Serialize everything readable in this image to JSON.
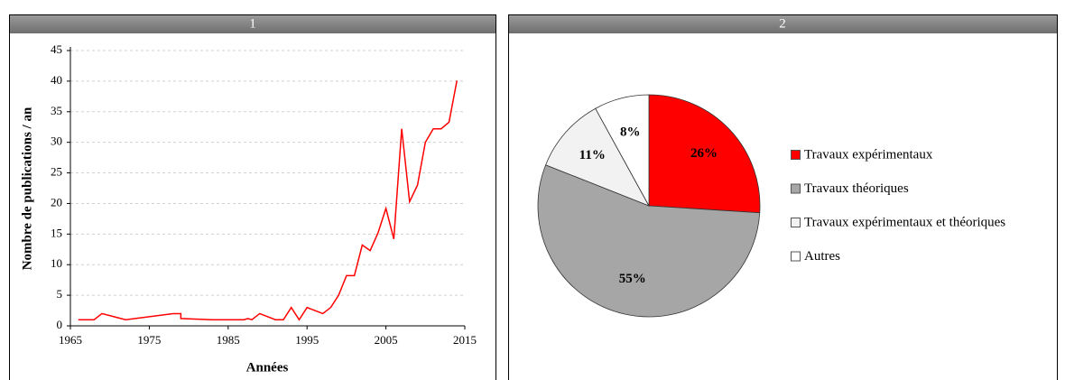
{
  "chart_data": [
    {
      "type": "line",
      "label": "1",
      "x_label": "Années",
      "y_label": "Nombre de publications / an",
      "x": [
        1966,
        1968,
        1969,
        1972,
        1978,
        1979,
        1979,
        1983,
        1987,
        1987.5,
        1988,
        1989,
        1991,
        1992,
        1993,
        1994,
        1995,
        1997,
        1998,
        1999,
        2000,
        2001,
        2002,
        2003,
        2004,
        2005,
        2006,
        2007,
        2008,
        2009,
        2010,
        2011,
        2012,
        2013,
        2014
      ],
      "series": [
        {
          "name": "Publications",
          "color": "#ff0000",
          "values": [
            1,
            1,
            2,
            1,
            2,
            2,
            1.2,
            1,
            1,
            1.2,
            1,
            2,
            1,
            1,
            3,
            1,
            3,
            2,
            3,
            5,
            8.2,
            8.2,
            13.2,
            12.3,
            15.2,
            19.2,
            14.2,
            32.2,
            20.3,
            23,
            30,
            32.2,
            32.2,
            33.3,
            40.1
          ]
        }
      ],
      "xlim": [
        1965,
        2015
      ],
      "xticks": [
        1965,
        1975,
        1985,
        1995,
        2005,
        2015
      ],
      "ylim": [
        0,
        45
      ],
      "yticks": [
        0,
        5,
        10,
        15,
        20,
        25,
        30,
        35,
        40,
        45
      ],
      "grid": true
    },
    {
      "type": "pie",
      "label": "2",
      "categories": [
        "Travaux expérimentaux",
        "Travaux théoriques",
        "Travaux expérimentaux et théoriques",
        "Autres"
      ],
      "values": [
        26,
        55,
        11,
        8
      ],
      "value_labels": [
        "26%",
        "55%",
        "11%",
        "8%"
      ],
      "colors": [
        "#ff0000",
        "#a6a6a6",
        "#f2f2f2",
        "#ffffff"
      ],
      "legend": "right"
    }
  ]
}
